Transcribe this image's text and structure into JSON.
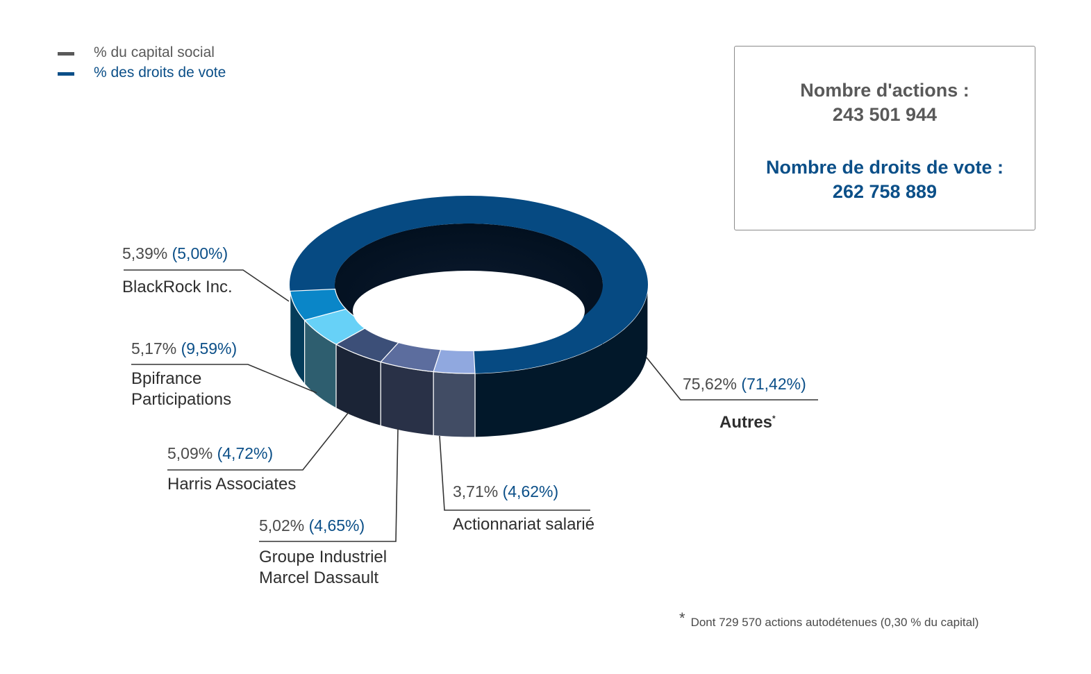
{
  "legend": {
    "capital_label": "% du capital social",
    "vote_label": "% des droits de vote",
    "capital_color": "#595959",
    "vote_color": "#0b4f88"
  },
  "info_box": {
    "shares_label": "Nombre d'actions :",
    "shares_value": "243 501 944",
    "votes_label": "Nombre de droits de vote :",
    "votes_value": "262 758 889"
  },
  "chart_data": {
    "type": "pie",
    "style": "3d-donut",
    "slices": [
      {
        "name": "Autres",
        "capital_pct": 75.62,
        "vote_pct": 71.42,
        "capital_text": "75,62%",
        "vote_text": "(71,42%)",
        "color": "#064a82"
      },
      {
        "name": "BlackRock Inc.",
        "capital_pct": 5.39,
        "vote_pct": 5.0,
        "capital_text": "5,39%",
        "vote_text": "(5,00%)",
        "color": "#0a86c8"
      },
      {
        "name": "Bpifrance Participations",
        "capital_pct": 5.17,
        "vote_pct": 9.59,
        "capital_text": "5,17%",
        "vote_text": "(9,59%)",
        "color": "#67d1f7"
      },
      {
        "name": "Harris Associates",
        "capital_pct": 5.09,
        "vote_pct": 4.72,
        "capital_text": "5,09%",
        "vote_text": "(4,72%)",
        "color": "#3c4f78"
      },
      {
        "name": "Groupe Industriel Marcel Dassault",
        "capital_pct": 5.02,
        "vote_pct": 4.65,
        "capital_text": "5,02%",
        "vote_text": "(4,65%)",
        "color": "#5c6d9e"
      },
      {
        "name": "Actionnariat salarié",
        "capital_pct": 3.71,
        "vote_pct": 4.62,
        "capital_text": "3,71%",
        "vote_text": "(4,62%)",
        "color": "#90a8df"
      }
    ]
  },
  "labels": {
    "blackrock_line1": "BlackRock Inc.",
    "bpifrance_line1": "Bpifrance",
    "bpifrance_line2": "Participations",
    "harris_line1": "Harris Associates",
    "gimd_line1": "Groupe Industriel",
    "gimd_line2": "Marcel Dassault",
    "salarie_line1": "Actionnariat salarié",
    "autres_line1": "Autres",
    "autres_mark": "*"
  },
  "footnote": {
    "star": "*",
    "text": "Dont 729 570 actions autodétenues  (0,30 % du capital)"
  }
}
